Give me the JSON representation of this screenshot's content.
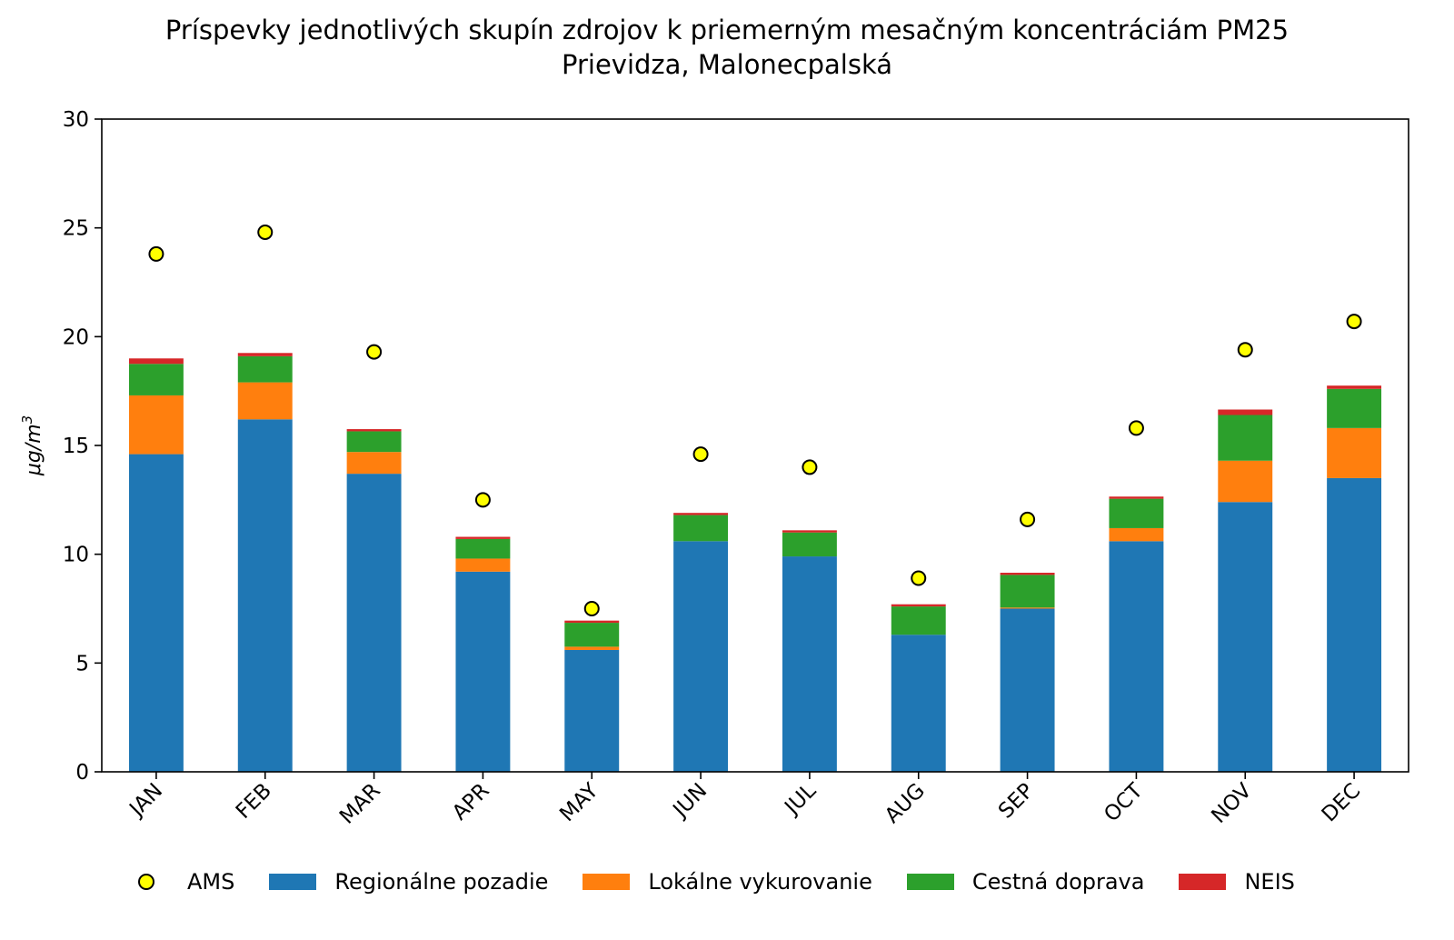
{
  "chart_data": {
    "type": "bar",
    "stacked": true,
    "title": "Príspevky jednotlivých skupín zdrojov k priemerným mesačným koncentráciám PM25",
    "subtitle": "Prievidza, Malonecpalská",
    "ylabel": "μg/m3",
    "xlabel": "",
    "ylim": [
      0,
      30
    ],
    "yticks": [
      0,
      5,
      10,
      15,
      20,
      25,
      30
    ],
    "categories": [
      "JAN",
      "FEB",
      "MAR",
      "APR",
      "MAY",
      "JUN",
      "JUL",
      "AUG",
      "SEP",
      "OCT",
      "NOV",
      "DEC"
    ],
    "series": [
      {
        "name": "Regionálne pozadie",
        "color": "#1f77b4",
        "values": [
          14.6,
          16.2,
          13.7,
          9.2,
          5.6,
          10.6,
          9.9,
          6.3,
          7.5,
          10.6,
          12.4,
          13.5
        ]
      },
      {
        "name": "Lokálne vykurovanie",
        "color": "#ff7f0e",
        "values": [
          2.7,
          1.7,
          1.0,
          0.6,
          0.15,
          0.0,
          0.0,
          0.0,
          0.05,
          0.6,
          1.9,
          2.3
        ]
      },
      {
        "name": "Cestná doprava",
        "color": "#2ca02c",
        "values": [
          1.45,
          1.2,
          0.95,
          0.9,
          1.1,
          1.2,
          1.1,
          1.3,
          1.5,
          1.35,
          2.1,
          1.8
        ]
      },
      {
        "name": "NEIS",
        "color": "#d62728",
        "values": [
          0.25,
          0.15,
          0.1,
          0.1,
          0.1,
          0.1,
          0.1,
          0.1,
          0.1,
          0.1,
          0.25,
          0.15
        ]
      }
    ],
    "points": {
      "name": "AMS",
      "color": "#ffff00",
      "values": [
        23.8,
        24.8,
        19.3,
        12.5,
        7.5,
        14.6,
        14.0,
        8.9,
        11.6,
        15.8,
        19.4,
        20.7
      ]
    },
    "legend_position": "bottom-center"
  }
}
